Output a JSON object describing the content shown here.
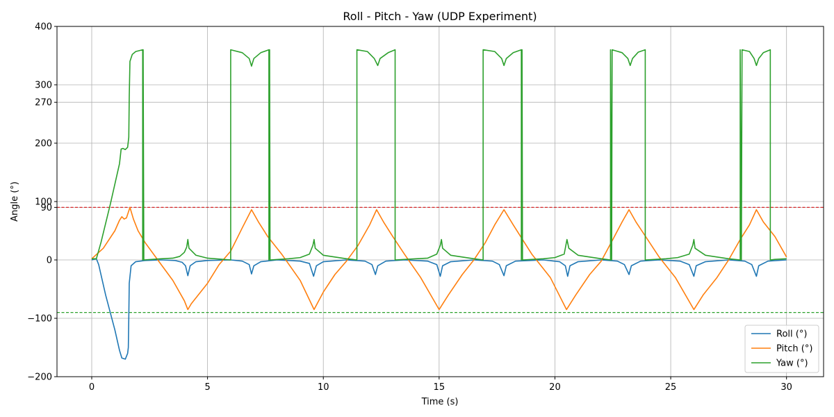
{
  "chart_data": {
    "type": "line",
    "title": "Roll - Pitch - Yaw (UDP Experiment)",
    "xlabel": "Time (s)",
    "ylabel": "Angle (°)",
    "xlim": [
      -1.5,
      31.6
    ],
    "ylim": [
      -200,
      400
    ],
    "xticks": [
      0,
      5,
      10,
      15,
      20,
      25,
      30
    ],
    "yticks": [
      -200,
      -100,
      0,
      90,
      100,
      200,
      270,
      300,
      400
    ],
    "grid": true,
    "legend": "bottom-right",
    "reference_lines": [
      {
        "y": 90,
        "color": "#d62728",
        "style": "dashed"
      },
      {
        "y": -90,
        "color": "#2ca02c",
        "style": "dashed"
      }
    ],
    "series": [
      {
        "name": "Roll (°)",
        "color": "#1f77b4",
        "points": [
          [
            0,
            0
          ],
          [
            0.2,
            2
          ],
          [
            0.3,
            -8
          ],
          [
            0.6,
            -60
          ],
          [
            1.0,
            -120
          ],
          [
            1.2,
            -155
          ],
          [
            1.3,
            -168
          ],
          [
            1.45,
            -170
          ],
          [
            1.55,
            -160
          ],
          [
            1.58,
            -150
          ],
          [
            1.6,
            -100
          ],
          [
            1.62,
            -40
          ],
          [
            1.7,
            -10
          ],
          [
            1.9,
            -3
          ],
          [
            2.3,
            -1
          ],
          [
            3.0,
            0
          ],
          [
            3.6,
            -1
          ],
          [
            3.9,
            -4
          ],
          [
            4.05,
            -10
          ],
          [
            4.15,
            -27
          ],
          [
            4.25,
            -10
          ],
          [
            4.5,
            -3
          ],
          [
            5.0,
            -1
          ],
          [
            6.0,
            0
          ],
          [
            6.5,
            -2
          ],
          [
            6.8,
            -8
          ],
          [
            6.9,
            -24
          ],
          [
            7.0,
            -10
          ],
          [
            7.3,
            -3
          ],
          [
            8.0,
            0
          ],
          [
            9.0,
            -2
          ],
          [
            9.4,
            -6
          ],
          [
            9.58,
            -28
          ],
          [
            9.7,
            -10
          ],
          [
            10.0,
            -3
          ],
          [
            11.0,
            0
          ],
          [
            11.8,
            -2
          ],
          [
            12.1,
            -8
          ],
          [
            12.25,
            -25
          ],
          [
            12.35,
            -10
          ],
          [
            12.7,
            -2
          ],
          [
            13.5,
            0
          ],
          [
            14.5,
            -2
          ],
          [
            14.9,
            -8
          ],
          [
            15.05,
            -28
          ],
          [
            15.15,
            -10
          ],
          [
            15.5,
            -3
          ],
          [
            16.5,
            0
          ],
          [
            17.3,
            -2
          ],
          [
            17.6,
            -8
          ],
          [
            17.8,
            -27
          ],
          [
            17.9,
            -10
          ],
          [
            18.3,
            -2
          ],
          [
            19.5,
            0
          ],
          [
            20.2,
            -3
          ],
          [
            20.45,
            -10
          ],
          [
            20.55,
            -28
          ],
          [
            20.65,
            -10
          ],
          [
            21.0,
            -3
          ],
          [
            22.0,
            0
          ],
          [
            22.7,
            -2
          ],
          [
            23.0,
            -8
          ],
          [
            23.2,
            -25
          ],
          [
            23.3,
            -10
          ],
          [
            23.7,
            -2
          ],
          [
            24.5,
            0
          ],
          [
            25.4,
            -2
          ],
          [
            25.8,
            -8
          ],
          [
            26.0,
            -28
          ],
          [
            26.1,
            -10
          ],
          [
            26.5,
            -3
          ],
          [
            27.5,
            0
          ],
          [
            28.2,
            -2
          ],
          [
            28.5,
            -8
          ],
          [
            28.7,
            -28
          ],
          [
            28.8,
            -10
          ],
          [
            29.2,
            -2
          ],
          [
            30.0,
            0
          ]
        ]
      },
      {
        "name": "Pitch (°)",
        "color": "#ff7f0e",
        "points": [
          [
            0,
            2
          ],
          [
            0.5,
            20
          ],
          [
            1.0,
            50
          ],
          [
            1.2,
            68
          ],
          [
            1.3,
            74
          ],
          [
            1.4,
            70
          ],
          [
            1.5,
            72
          ],
          [
            1.65,
            90
          ],
          [
            1.8,
            70
          ],
          [
            2.0,
            50
          ],
          [
            2.3,
            30
          ],
          [
            3.0,
            -8
          ],
          [
            3.5,
            -35
          ],
          [
            4.0,
            -70
          ],
          [
            4.15,
            -85
          ],
          [
            4.3,
            -75
          ],
          [
            5.0,
            -40
          ],
          [
            5.5,
            -8
          ],
          [
            6.0,
            15
          ],
          [
            6.5,
            55
          ],
          [
            6.9,
            86
          ],
          [
            7.2,
            65
          ],
          [
            7.6,
            40
          ],
          [
            8.2,
            10
          ],
          [
            9.0,
            -35
          ],
          [
            9.6,
            -85
          ],
          [
            10.0,
            -55
          ],
          [
            10.5,
            -25
          ],
          [
            11.0,
            -2
          ],
          [
            11.5,
            25
          ],
          [
            12.0,
            60
          ],
          [
            12.3,
            86
          ],
          [
            12.6,
            65
          ],
          [
            13.0,
            40
          ],
          [
            13.5,
            10
          ],
          [
            14.2,
            -30
          ],
          [
            15.0,
            -85
          ],
          [
            15.4,
            -60
          ],
          [
            16.0,
            -25
          ],
          [
            16.5,
            0
          ],
          [
            17.0,
            30
          ],
          [
            17.4,
            60
          ],
          [
            17.8,
            86
          ],
          [
            18.2,
            60
          ],
          [
            18.6,
            35
          ],
          [
            19.0,
            10
          ],
          [
            19.8,
            -30
          ],
          [
            20.5,
            -85
          ],
          [
            20.9,
            -60
          ],
          [
            21.5,
            -25
          ],
          [
            22.0,
            -2
          ],
          [
            22.5,
            35
          ],
          [
            22.9,
            65
          ],
          [
            23.2,
            86
          ],
          [
            23.5,
            65
          ],
          [
            24.0,
            35
          ],
          [
            24.5,
            5
          ],
          [
            25.2,
            -30
          ],
          [
            26.0,
            -85
          ],
          [
            26.4,
            -60
          ],
          [
            27.0,
            -30
          ],
          [
            27.5,
            0
          ],
          [
            28.0,
            35
          ],
          [
            28.4,
            60
          ],
          [
            28.7,
            86
          ],
          [
            29.0,
            65
          ],
          [
            29.5,
            40
          ],
          [
            30.0,
            5
          ]
        ]
      },
      {
        "name": "Yaw (°)",
        "color": "#2ca02c",
        "points": [
          [
            0,
            2
          ],
          [
            0.2,
            2
          ],
          [
            0.4,
            30
          ],
          [
            0.8,
            95
          ],
          [
            1.2,
            165
          ],
          [
            1.27,
            190
          ],
          [
            1.35,
            191
          ],
          [
            1.45,
            189
          ],
          [
            1.55,
            193
          ],
          [
            1.6,
            210
          ],
          [
            1.62,
            280
          ],
          [
            1.65,
            340
          ],
          [
            1.75,
            352
          ],
          [
            1.9,
            357
          ],
          [
            2.2,
            360
          ],
          [
            2.2,
            0
          ],
          [
            2.22,
            360
          ],
          [
            2.25,
            0
          ],
          [
            3.0,
            2
          ],
          [
            3.5,
            3
          ],
          [
            3.8,
            6
          ],
          [
            4.0,
            13
          ],
          [
            4.1,
            22
          ],
          [
            4.15,
            35
          ],
          [
            4.2,
            20
          ],
          [
            4.5,
            8
          ],
          [
            5.0,
            3
          ],
          [
            6.0,
            0
          ],
          [
            6.0,
            360
          ],
          [
            6.5,
            355
          ],
          [
            6.8,
            345
          ],
          [
            6.9,
            332
          ],
          [
            7.0,
            345
          ],
          [
            7.3,
            355
          ],
          [
            7.65,
            360
          ],
          [
            7.65,
            0
          ],
          [
            7.68,
            360
          ],
          [
            7.7,
            0
          ],
          [
            8.5,
            2
          ],
          [
            9.0,
            4
          ],
          [
            9.4,
            10
          ],
          [
            9.55,
            25
          ],
          [
            9.6,
            35
          ],
          [
            9.65,
            20
          ],
          [
            10.0,
            8
          ],
          [
            11.0,
            2
          ],
          [
            11.45,
            0
          ],
          [
            11.45,
            360
          ],
          [
            11.9,
            357
          ],
          [
            12.2,
            345
          ],
          [
            12.35,
            333
          ],
          [
            12.45,
            345
          ],
          [
            12.8,
            355
          ],
          [
            13.1,
            360
          ],
          [
            13.1,
            0
          ],
          [
            14.0,
            2
          ],
          [
            14.5,
            3
          ],
          [
            14.9,
            10
          ],
          [
            15.05,
            25
          ],
          [
            15.1,
            35
          ],
          [
            15.15,
            20
          ],
          [
            15.5,
            8
          ],
          [
            16.5,
            2
          ],
          [
            16.9,
            0
          ],
          [
            16.9,
            360
          ],
          [
            17.4,
            357
          ],
          [
            17.7,
            345
          ],
          [
            17.8,
            333
          ],
          [
            17.9,
            345
          ],
          [
            18.2,
            355
          ],
          [
            18.55,
            360
          ],
          [
            18.55,
            0
          ],
          [
            18.58,
            360
          ],
          [
            18.6,
            0
          ],
          [
            19.5,
            2
          ],
          [
            20.0,
            4
          ],
          [
            20.4,
            10
          ],
          [
            20.52,
            35
          ],
          [
            20.6,
            20
          ],
          [
            21.0,
            8
          ],
          [
            22.0,
            2
          ],
          [
            22.4,
            0
          ],
          [
            22.4,
            360
          ],
          [
            22.45,
            0
          ],
          [
            22.47,
            360
          ],
          [
            22.9,
            355
          ],
          [
            23.15,
            345
          ],
          [
            23.25,
            333
          ],
          [
            23.35,
            345
          ],
          [
            23.6,
            356
          ],
          [
            23.9,
            360
          ],
          [
            23.9,
            0
          ],
          [
            24.8,
            2
          ],
          [
            25.3,
            4
          ],
          [
            25.8,
            10
          ],
          [
            25.95,
            25
          ],
          [
            26.0,
            35
          ],
          [
            26.05,
            20
          ],
          [
            26.5,
            8
          ],
          [
            27.5,
            2
          ],
          [
            28.0,
            0
          ],
          [
            28.0,
            360
          ],
          [
            28.05,
            0
          ],
          [
            28.08,
            360
          ],
          [
            28.4,
            357
          ],
          [
            28.6,
            345
          ],
          [
            28.7,
            333
          ],
          [
            28.8,
            345
          ],
          [
            29.0,
            355
          ],
          [
            29.3,
            360
          ],
          [
            29.3,
            0
          ],
          [
            29.5,
            1
          ],
          [
            30.0,
            2
          ]
        ]
      }
    ]
  }
}
